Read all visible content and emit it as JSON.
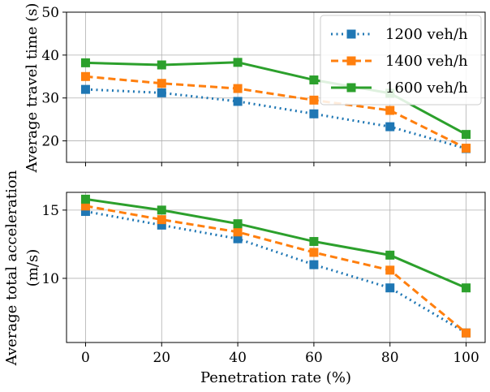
{
  "chart_data": [
    {
      "type": "line",
      "title": "",
      "xlabel": "",
      "ylabel": "Average travel time (s)",
      "x": [
        0,
        20,
        40,
        60,
        80,
        100
      ],
      "xlim": [
        -5,
        105
      ],
      "ylim": [
        15,
        50
      ],
      "yticks": [
        20,
        30,
        40,
        50
      ],
      "xticks": [
        0,
        20,
        40,
        60,
        80,
        100
      ],
      "grid": true,
      "legend": "top-right",
      "series": [
        {
          "name": "1200 veh/h",
          "color": "#1f77b4",
          "linestyle": "dotted",
          "values": [
            32.0,
            31.2,
            29.2,
            26.3,
            23.3,
            18.2
          ]
        },
        {
          "name": "1400 veh/h",
          "color": "#ff7f0e",
          "linestyle": "dashed",
          "values": [
            35.0,
            33.4,
            32.2,
            29.5,
            27.1,
            18.3
          ]
        },
        {
          "name": "1600 veh/h",
          "color": "#2ca02c",
          "linestyle": "solid",
          "values": [
            38.2,
            37.7,
            38.3,
            34.2,
            31.1,
            21.5
          ]
        }
      ]
    },
    {
      "type": "line",
      "title": "",
      "xlabel": "Penetration rate (%)",
      "ylabel": [
        "Average total acceleration",
        "(m/s)"
      ],
      "x": [
        0,
        20,
        40,
        60,
        80,
        100
      ],
      "xlim": [
        -5,
        105
      ],
      "ylim": [
        5.3,
        16.3
      ],
      "yticks": [
        10,
        15
      ],
      "xticks": [
        0,
        20,
        40,
        60,
        80,
        100
      ],
      "grid": true,
      "legend": "none",
      "series": [
        {
          "name": "1200 veh/h",
          "color": "#1f77b4",
          "linestyle": "dotted",
          "values": [
            14.9,
            13.9,
            12.9,
            11.0,
            9.3,
            6.0
          ]
        },
        {
          "name": "1400 veh/h",
          "color": "#ff7f0e",
          "linestyle": "dashed",
          "values": [
            15.3,
            14.3,
            13.4,
            11.9,
            10.6,
            6.0
          ]
        },
        {
          "name": "1600 veh/h",
          "color": "#2ca02c",
          "linestyle": "solid",
          "values": [
            15.8,
            15.0,
            14.0,
            12.7,
            11.7,
            9.3
          ]
        }
      ]
    }
  ]
}
